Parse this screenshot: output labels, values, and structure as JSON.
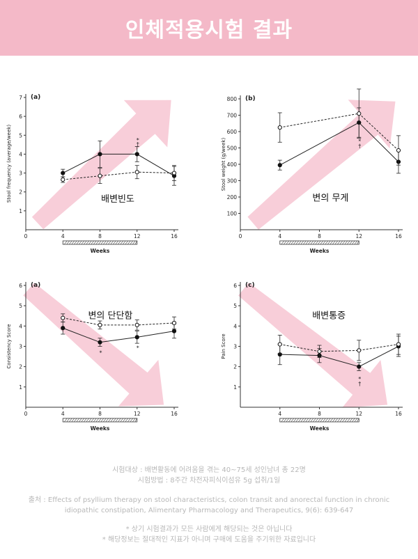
{
  "page_title": "인체적용시험 결과",
  "colors": {
    "banner": "#f4b9c8",
    "arrow": "#f7c5d2",
    "footer_text": "#b8b8b8"
  },
  "chart_data": [
    {
      "type": "line",
      "panel_label": "(a)",
      "overlay_label": "배변빈도",
      "arrow": "up",
      "xlabel": "Weeks",
      "ylabel": "Stool frequency (average/week)",
      "xlim": [
        0,
        16
      ],
      "xticks": [
        0,
        4,
        8,
        12,
        16
      ],
      "ylim": [
        0,
        7
      ],
      "yticks": [
        1,
        2,
        3,
        4,
        5,
        6,
        7
      ],
      "treatment_bar": [
        4,
        12
      ],
      "series": [
        {
          "style": "solid",
          "marker": "filled",
          "x": [
            4,
            8,
            12,
            16
          ],
          "y": [
            3.0,
            4.0,
            4.0,
            2.85
          ],
          "err": [
            0.2,
            0.7,
            0.4,
            0.5
          ]
        },
        {
          "style": "dashed",
          "marker": "open",
          "x": [
            4,
            8,
            12,
            16
          ],
          "y": [
            2.65,
            2.85,
            3.05,
            3.0
          ],
          "err": [
            0.15,
            0.4,
            0.35,
            0.4
          ]
        }
      ],
      "annotations": [
        {
          "x": 12,
          "text": "*"
        },
        {
          "x": 12,
          "text": "†"
        }
      ]
    },
    {
      "type": "line",
      "panel_label": "(b)",
      "overlay_label": "변의 무게",
      "arrow": "up",
      "xlabel": "Weeks",
      "ylabel": "Stool weight (g/week)",
      "xlim": [
        0,
        16
      ],
      "xticks": [
        0,
        4,
        8,
        12,
        16
      ],
      "ylim": [
        0,
        800
      ],
      "yticks": [
        100,
        200,
        300,
        400,
        500,
        600,
        700,
        800
      ],
      "treatment_bar": [
        4,
        12
      ],
      "series": [
        {
          "style": "solid",
          "marker": "filled",
          "x": [
            4,
            12,
            16
          ],
          "y": [
            395,
            655,
            415
          ],
          "err": [
            30,
            90,
            70
          ]
        },
        {
          "style": "dashed",
          "marker": "open",
          "x": [
            4,
            12,
            16
          ],
          "y": [
            625,
            710,
            485
          ],
          "err": [
            90,
            150,
            90
          ]
        }
      ],
      "annotations": [
        {
          "x": 12,
          "text": "*"
        },
        {
          "x": 12,
          "text": "†"
        }
      ]
    },
    {
      "type": "line",
      "panel_label": "(a)",
      "overlay_label": "변의 단단함",
      "arrow": "down",
      "xlabel": "Weeks",
      "ylabel": "Consistency Score",
      "xlim": [
        0,
        16
      ],
      "xticks": [
        0,
        4,
        8,
        12,
        16
      ],
      "ylim": [
        0,
        6
      ],
      "yticks": [
        1,
        2,
        3,
        4,
        5,
        6
      ],
      "treatment_bar": [
        4,
        12
      ],
      "series": [
        {
          "style": "solid",
          "marker": "filled",
          "x": [
            4,
            8,
            12,
            16
          ],
          "y": [
            3.9,
            3.2,
            3.45,
            3.75
          ],
          "err": [
            0.3,
            0.2,
            0.3,
            0.35
          ]
        },
        {
          "style": "dashed",
          "marker": "open",
          "x": [
            4,
            8,
            12,
            16
          ],
          "y": [
            4.4,
            4.05,
            4.05,
            4.15
          ],
          "err": [
            0.2,
            0.2,
            0.25,
            0.3
          ]
        }
      ],
      "annotations": [
        {
          "x": 8,
          "text": "*"
        },
        {
          "x": 12,
          "text": "*"
        }
      ]
    },
    {
      "type": "line",
      "panel_label": "(c)",
      "overlay_label": "배변통증",
      "arrow": "down",
      "xlabel": "Weeks",
      "ylabel": "Pain Score",
      "xlim": [
        0,
        16
      ],
      "xticks": [
        4,
        8,
        12,
        16
      ],
      "ylim": [
        0,
        6
      ],
      "yticks": [
        1,
        2,
        3,
        4,
        5,
        6
      ],
      "treatment_bar": [
        4,
        12
      ],
      "series": [
        {
          "style": "solid",
          "marker": "filled",
          "x": [
            4,
            8,
            12,
            16
          ],
          "y": [
            2.6,
            2.55,
            2.0,
            3.0
          ],
          "err": [
            0.5,
            0.35,
            0.2,
            0.5
          ]
        },
        {
          "style": "dashed",
          "marker": "open",
          "x": [
            4,
            8,
            12,
            16
          ],
          "y": [
            3.1,
            2.75,
            2.8,
            3.1
          ],
          "err": [
            0.45,
            0.3,
            0.5,
            0.5
          ]
        }
      ],
      "annotations": [
        {
          "x": 12,
          "text": "*"
        },
        {
          "x": 12,
          "text": "†"
        }
      ]
    }
  ],
  "footer": {
    "subjects": "시험대상 : 배변활동에 어려움을 겪는 40~75세 성인남녀 총 22명",
    "method": "시험방법 : 8주간 차전자피식이섬유 5g 섭취/1일",
    "source_line1": "출처 : Effects of psyllium therapy on stool characteristics,  colon transit and anorectal function in chronic",
    "source_line2": "idiopathic constipation, Alimentary Pharmacology and Therapeutics, 9(6): 639-647",
    "note1": "* 상기 시험결과가 모든 사람에게 해당되는 것은 아닙니다",
    "note2": "* 해당정보는 절대적인 지표가 아니며 구매에 도움을 주기위한 자료입니다"
  }
}
